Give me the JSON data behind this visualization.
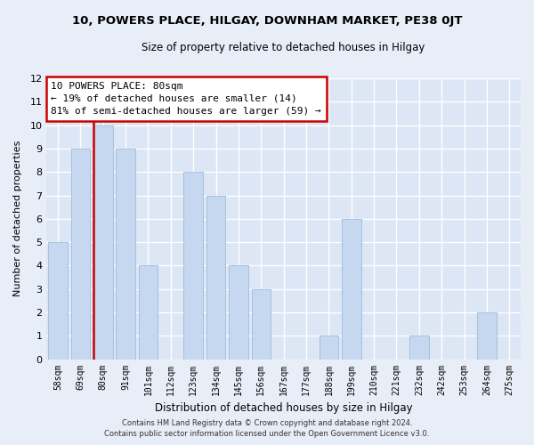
{
  "title": "10, POWERS PLACE, HILGAY, DOWNHAM MARKET, PE38 0JT",
  "subtitle": "Size of property relative to detached houses in Hilgay",
  "xlabel": "Distribution of detached houses by size in Hilgay",
  "ylabel": "Number of detached properties",
  "categories": [
    "58sqm",
    "69sqm",
    "80sqm",
    "91sqm",
    "101sqm",
    "112sqm",
    "123sqm",
    "134sqm",
    "145sqm",
    "156sqm",
    "167sqm",
    "177sqm",
    "188sqm",
    "199sqm",
    "210sqm",
    "221sqm",
    "232sqm",
    "242sqm",
    "253sqm",
    "264sqm",
    "275sqm"
  ],
  "values": [
    5,
    9,
    10,
    9,
    4,
    0,
    8,
    7,
    4,
    3,
    0,
    0,
    1,
    6,
    0,
    0,
    1,
    0,
    0,
    2,
    0
  ],
  "highlight_index": 2,
  "bar_color": "#c5d8f0",
  "bar_edge_color": "#a0bcd8",
  "highlight_line_color": "#cc0000",
  "ylim": [
    0,
    12
  ],
  "yticks": [
    0,
    1,
    2,
    3,
    4,
    5,
    6,
    7,
    8,
    9,
    10,
    11,
    12
  ],
  "annotation_title": "10 POWERS PLACE: 80sqm",
  "annotation_line1": "← 19% of detached houses are smaller (14)",
  "annotation_line2": "81% of semi-detached houses are larger (59) →",
  "footer1": "Contains HM Land Registry data © Crown copyright and database right 2024.",
  "footer2": "Contains public sector information licensed under the Open Government Licence v3.0.",
  "bg_color": "#e8eef7",
  "plot_bg_color": "#dce6f5"
}
